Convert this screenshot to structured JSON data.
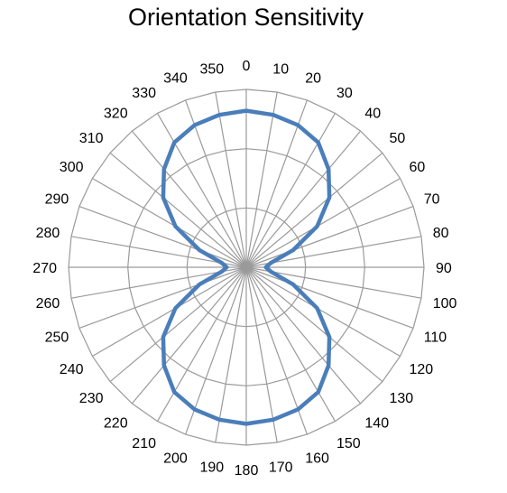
{
  "chart_data": {
    "type": "radar",
    "title": "Orientation Sensitivity",
    "categories": [
      "0",
      "10",
      "20",
      "30",
      "40",
      "50",
      "60",
      "70",
      "80",
      "90",
      "100",
      "110",
      "120",
      "130",
      "140",
      "150",
      "160",
      "170",
      "180",
      "190",
      "200",
      "210",
      "220",
      "230",
      "240",
      "250",
      "260",
      "270",
      "280",
      "290",
      "300",
      "310",
      "320",
      "330",
      "340",
      "350"
    ],
    "series": [
      {
        "values": [
          0.88,
          0.87,
          0.85,
          0.81,
          0.72,
          0.61,
          0.46,
          0.28,
          0.14,
          0.11,
          0.14,
          0.28,
          0.46,
          0.61,
          0.72,
          0.81,
          0.85,
          0.87,
          0.88,
          0.87,
          0.85,
          0.81,
          0.72,
          0.61,
          0.46,
          0.28,
          0.14,
          0.11,
          0.14,
          0.28,
          0.46,
          0.61,
          0.72,
          0.81,
          0.85,
          0.87
        ],
        "color": "#4a7ebb"
      }
    ],
    "rlim": [
      0,
      1
    ],
    "rings": 3,
    "grid": true,
    "grid_color": "#9a9a9a"
  }
}
